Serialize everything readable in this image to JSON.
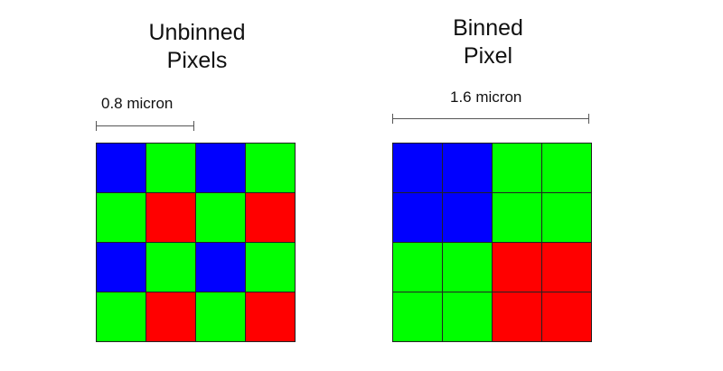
{
  "unbinned": {
    "title_line1": "Unbinned",
    "title_line2": "Pixels",
    "scale_label": "0.8 micron",
    "cells": [
      [
        "blue",
        "green",
        "blue",
        "green"
      ],
      [
        "green",
        "red",
        "green",
        "red"
      ],
      [
        "blue",
        "green",
        "blue",
        "green"
      ],
      [
        "green",
        "red",
        "green",
        "red"
      ]
    ]
  },
  "binned": {
    "title_line1": "Binned",
    "title_line2": "Pixel",
    "scale_label": "1.6 micron",
    "cells": [
      [
        "blue",
        "blue",
        "green",
        "green"
      ],
      [
        "blue",
        "blue",
        "green",
        "green"
      ],
      [
        "green",
        "green",
        "red",
        "red"
      ],
      [
        "green",
        "green",
        "red",
        "red"
      ]
    ]
  },
  "colors": {
    "blue": "#0000ff",
    "green": "#00ff00",
    "red": "#ff0000"
  }
}
